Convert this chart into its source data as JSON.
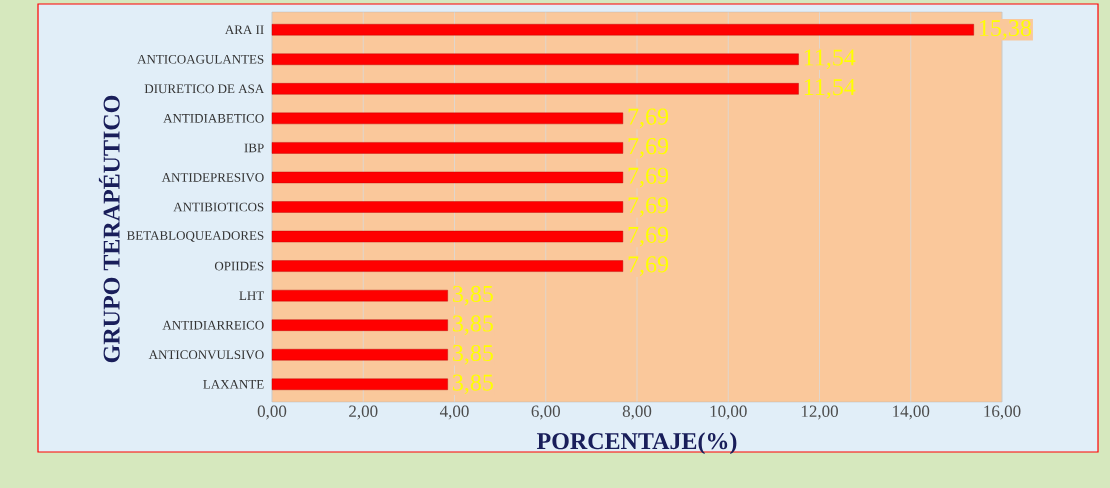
{
  "chart_data": {
    "type": "bar",
    "orientation": "horizontal",
    "xlabel": "PORCENTAJE(%)",
    "ylabel": "GRUPO TERAPÉUTICO",
    "categories": [
      "ARA II",
      "ANTICOAGULANTES",
      "DIURETICO DE ASA",
      "ANTIDIABETICO",
      "IBP",
      "ANTIDEPRESIVO",
      "ANTIBIOTICOS",
      "BETABLOQUEADORES",
      "OPIIDES",
      "LHT",
      "ANTIDIARREICO",
      "ANTICONVULSIVO",
      "LAXANTE"
    ],
    "values": [
      15.38,
      11.54,
      11.54,
      7.69,
      7.69,
      7.69,
      7.69,
      7.69,
      7.69,
      3.85,
      3.85,
      3.85,
      3.85
    ],
    "value_labels": [
      "15,38",
      "11,54",
      "11,54",
      "7,69",
      "7,69",
      "7,69",
      "7,69",
      "7,69",
      "7,69",
      "3,85",
      "3,85",
      "3,85",
      "3,85"
    ],
    "color": "#ff0000",
    "xlim": [
      0,
      16
    ],
    "xticks": [
      {
        "value": 0,
        "label": "0,00"
      },
      {
        "value": 2,
        "label": "2,00"
      },
      {
        "value": 4,
        "label": "4,00"
      },
      {
        "value": 6,
        "label": "6,00"
      },
      {
        "value": 8,
        "label": "8,00"
      },
      {
        "value": 10,
        "label": "10,00"
      },
      {
        "value": 12,
        "label": "12,00"
      },
      {
        "value": 14,
        "label": "14,00"
      },
      {
        "value": 16,
        "label": "16,00"
      }
    ],
    "grid": "x"
  }
}
